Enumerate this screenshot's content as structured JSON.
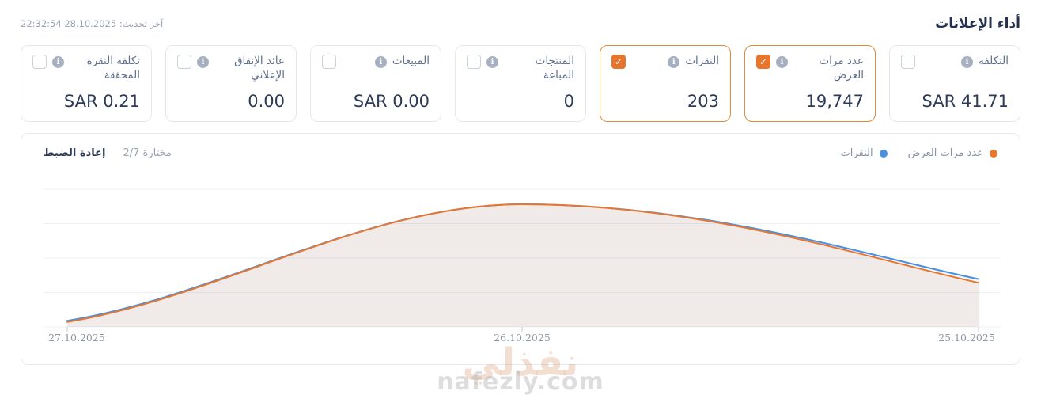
{
  "header": {
    "title": "أداء الإعلانات",
    "last_update": "آخر تحديث: 28.10.2025 22:32:54"
  },
  "cards": [
    {
      "label": "التكلفة",
      "value": "SAR 41.71",
      "checked": false
    },
    {
      "label": "عدد مرات العرض",
      "value": "19,747",
      "checked": true
    },
    {
      "label": "النقرات",
      "value": "203",
      "checked": true
    },
    {
      "label": "المنتجات المباعة",
      "value": "0",
      "checked": false
    },
    {
      "label": "المبيعات",
      "value": "SAR 0.00",
      "checked": false
    },
    {
      "label": "عائد الإنفاق الإعلاني",
      "value": "0.00",
      "checked": false
    },
    {
      "label": "تكلفة النقرة المحققة",
      "value": "SAR 0.21",
      "checked": false
    }
  ],
  "chart_panel": {
    "selected_text": "مختارة 2/7",
    "reset_label": "إعادة الضبط"
  },
  "chart_data": {
    "type": "area",
    "x": [
      "27.10.2025",
      "26.10.2025",
      "25.10.2025"
    ],
    "series": [
      {
        "name": "عدد مرات العرض",
        "color": "#e8762d",
        "fill": "rgba(232,118,45,0.10)",
        "values": [
          4,
          100,
          36
        ]
      },
      {
        "name": "النقرات",
        "color": "#4a90e2",
        "fill": "rgba(74,144,226,0.07)",
        "values": [
          5,
          100,
          39
        ]
      }
    ],
    "units": "percent_of_peak",
    "y_axis": "unlabeled",
    "grid": true,
    "legend_position": "top-right"
  },
  "colors": {
    "accent_orange": "#e8752c",
    "accent_blue": "#4a90e2",
    "dark_text": "#2e3b58",
    "active_card_border": "#e08b34"
  },
  "watermark": {
    "arabic": "نفذلي",
    "latin": "nafezly.com"
  }
}
